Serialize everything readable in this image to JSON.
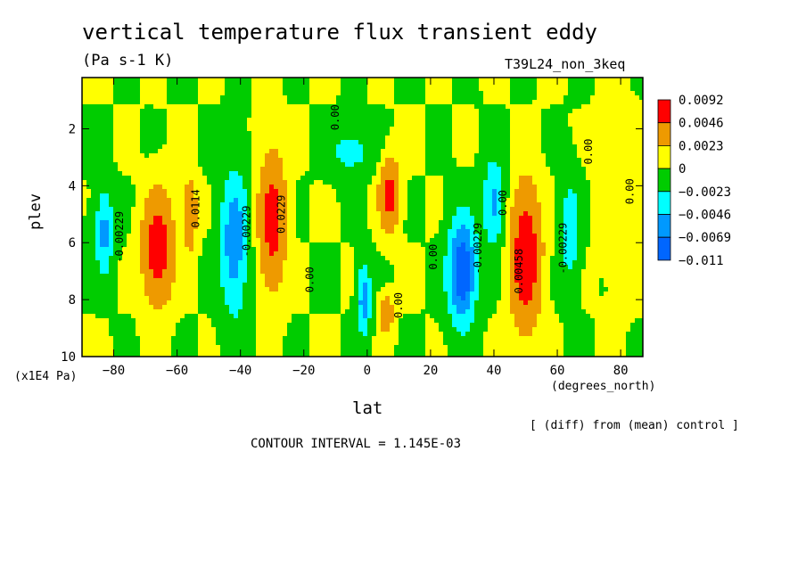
{
  "chart_data": {
    "type": "heatmap",
    "title": "vertical temperature flux transient eddy",
    "units": "(Pa s-1 K)",
    "run_label": "T39L24_non_3keq",
    "xlabel": "lat",
    "x_units": "(degrees_north)",
    "ylabel": "plev",
    "y_units": "(x1E4 Pa)",
    "xlim": [
      -90,
      87
    ],
    "ylim": [
      10,
      0.2
    ],
    "x_ticks": [
      -80,
      -60,
      -40,
      -20,
      0,
      20,
      40,
      60,
      80
    ],
    "y_ticks": [
      2,
      4,
      6,
      8,
      10
    ],
    "note": "[ (diff) from (mean) control ]",
    "contour_interval_text": "CONTOUR INTERVAL = 1.145E-03",
    "colorbar": {
      "labels": [
        "0.0092",
        "0.0046",
        "0.0023",
        "0",
        "-0.0023",
        "-0.0046",
        "-0.0069",
        "-0.011"
      ],
      "colors": [
        "#ff0000",
        "#ee9a00",
        "#ffff00",
        "#00cc00",
        "#00ffff",
        "#0099ff",
        "#0066ff"
      ]
    },
    "blobs": [
      {
        "lat": -66,
        "plev": 6.2,
        "amp": 0.0105,
        "slat": 4.5,
        "splev": 1.8
      },
      {
        "lat": -56,
        "plev": 5.0,
        "amp": 0.007,
        "slat": 2.0,
        "splev": 1.2
      },
      {
        "lat": -83,
        "plev": 5.6,
        "amp": -0.0055,
        "slat": 3.0,
        "splev": 1.5
      },
      {
        "lat": -42,
        "plev": 6.0,
        "amp": -0.0062,
        "slat": 4.5,
        "splev": 2.6
      },
      {
        "lat": -30,
        "plev": 5.2,
        "amp": 0.0095,
        "slat": 4.0,
        "splev": 2.2
      },
      {
        "lat": -5,
        "plev": 2.8,
        "amp": -0.0035,
        "slat": 7.0,
        "splev": 0.8
      },
      {
        "lat": 7,
        "plev": 4.3,
        "amp": 0.009,
        "slat": 3.0,
        "splev": 1.2
      },
      {
        "lat": -1,
        "plev": 8.0,
        "amp": -0.006,
        "slat": 2.2,
        "splev": 1.3
      },
      {
        "lat": 6,
        "plev": 8.5,
        "amp": 0.007,
        "slat": 2.0,
        "splev": 0.6
      },
      {
        "lat": 30,
        "plev": 7.0,
        "amp": -0.0095,
        "slat": 4.5,
        "splev": 1.8
      },
      {
        "lat": 40,
        "plev": 4.6,
        "amp": -0.0055,
        "slat": 3.5,
        "splev": 1.5
      },
      {
        "lat": 50,
        "plev": 6.5,
        "amp": 0.0115,
        "slat": 4.5,
        "splev": 2.3
      },
      {
        "lat": 64,
        "plev": 5.6,
        "amp": -0.004,
        "slat": 3.0,
        "splev": 2.0
      },
      {
        "lat": 80,
        "plev": 4.5,
        "amp": 0.0018,
        "slat": 6.0,
        "splev": 3.0
      }
    ],
    "contour_labels": [
      {
        "text": "-0.00229",
        "lat": -77,
        "plev": 5.8
      },
      {
        "text": "0.0114",
        "lat": -53,
        "plev": 4.8
      },
      {
        "text": "-0.00229",
        "lat": -37,
        "plev": 5.6
      },
      {
        "text": "0.0229",
        "lat": -26,
        "plev": 5.0
      },
      {
        "text": "0.00",
        "lat": -17,
        "plev": 7.3
      },
      {
        "text": "0.00",
        "lat": -9,
        "plev": 1.6
      },
      {
        "text": "0.00",
        "lat": 11,
        "plev": 8.2
      },
      {
        "text": "0.00",
        "lat": 22,
        "plev": 6.5
      },
      {
        "text": "-0.00229",
        "lat": 36,
        "plev": 6.2
      },
      {
        "text": "0.00",
        "lat": 44,
        "plev": 4.6
      },
      {
        "text": "0.00458",
        "lat": 49,
        "plev": 7.0
      },
      {
        "text": "-0.00229",
        "lat": 63,
        "plev": 6.2
      },
      {
        "text": "0.00",
        "lat": 71,
        "plev": 2.8
      },
      {
        "text": "0.00",
        "lat": 84,
        "plev": 4.2
      }
    ]
  }
}
